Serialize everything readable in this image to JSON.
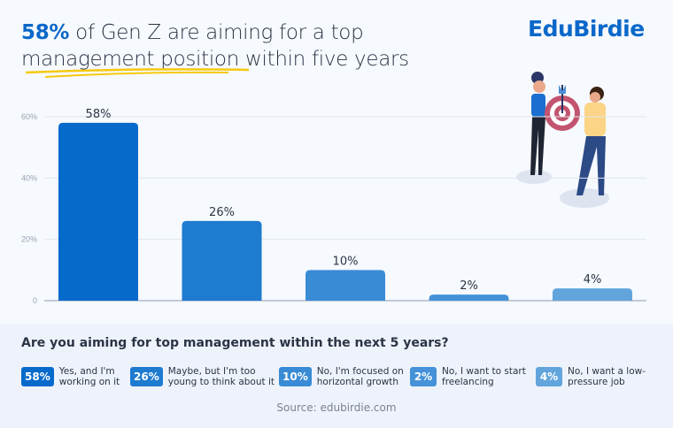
{
  "header": {
    "title_highlight": "58%",
    "title_rest_line1": " of Gen Z are aiming for a top",
    "title_line2": "management position within five years",
    "logo": "EduBirdie"
  },
  "chart_data": {
    "type": "bar",
    "categories": [
      "Yes, and I'm working on it",
      "Maybe, but I'm too young to think about it",
      "No, I'm focused on horizontal growth",
      "No, I want to start freelancing",
      "No, I want a low-pressure job"
    ],
    "values": [
      58,
      26,
      10,
      2,
      4
    ],
    "data_labels": [
      "58%",
      "26%",
      "10%",
      "2%",
      "4%"
    ],
    "colors": [
      "#066acb",
      "#1e7bd0",
      "#3a8bd5",
      "#4592d9",
      "#62a4dc"
    ],
    "yticks": [
      0,
      20,
      40,
      60
    ],
    "ytick_labels": [
      "0",
      "20%",
      "40%",
      "60%"
    ],
    "ylim": [
      0,
      60
    ],
    "grid": true,
    "ylabel": "",
    "xlabel": ""
  },
  "legend": {
    "question": "Are you aiming for top management within the next 5 years?",
    "items": [
      {
        "badge": "58%",
        "line1": "Yes, and I'm",
        "line2": "working on it"
      },
      {
        "badge": "26%",
        "line1": "Maybe, but I'm too",
        "line2": "young to think about it"
      },
      {
        "badge": "10%",
        "line1": "No, I'm focused on",
        "line2": "horizontal growth"
      },
      {
        "badge": "2%",
        "line1": "No, I want to start",
        "line2": "freelancing"
      },
      {
        "badge": "4%",
        "line1": "No, I want a low-",
        "line2": "pressure job"
      }
    ]
  },
  "source": "Source: edubirdie.com"
}
